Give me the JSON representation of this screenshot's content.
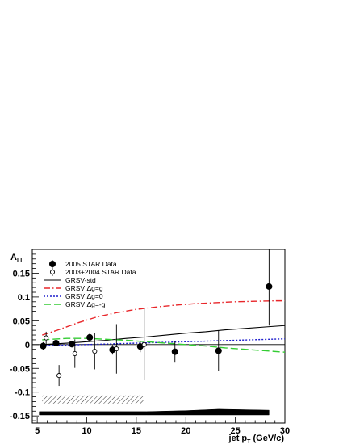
{
  "chart_data": {
    "type": "scatter",
    "title": "",
    "xlabel": "jet p",
    "xlabel_sub": "T",
    "xlabel_unit": "(GeV/c)",
    "ylabel": "A",
    "ylabel_sub": "LL",
    "xlim": [
      4.5,
      30
    ],
    "ylim": [
      -0.165,
      0.2
    ],
    "xticks": [
      5,
      10,
      15,
      20,
      25,
      30
    ],
    "xtick_labels": [
      "5",
      "10",
      "15",
      "20",
      "25",
      "30"
    ],
    "yticks": [
      -0.15,
      -0.1,
      -0.05,
      0,
      0.05,
      0.1,
      0.15
    ],
    "ytick_labels": [
      "-0.15",
      "-0.1",
      "-0.05",
      "0",
      "0.05",
      "0.1",
      "0.15"
    ],
    "grid": false,
    "legend_position": "top-left",
    "series": [
      {
        "name": "2005 STAR Data",
        "kind": "points",
        "marker": "filled-circle",
        "color": "#000000",
        "points": [
          {
            "x": 5.6,
            "y": -0.003,
            "err": 0.008
          },
          {
            "x": 6.9,
            "y": 0.003,
            "err": 0.006
          },
          {
            "x": 8.5,
            "y": 0.001,
            "err": 0.007
          },
          {
            "x": 10.3,
            "y": 0.015,
            "err": 0.01
          },
          {
            "x": 12.6,
            "y": -0.011,
            "err": 0.01
          },
          {
            "x": 15.4,
            "y": -0.004,
            "err": 0.012
          },
          {
            "x": 18.9,
            "y": -0.015,
            "err": 0.023
          },
          {
            "x": 23.3,
            "y": -0.013,
            "err": 0.042
          },
          {
            "x": 28.4,
            "y": 0.122,
            "err": 0.082
          }
        ]
      },
      {
        "name": "2003+2004 STAR Data",
        "kind": "points",
        "marker": "open-circle",
        "color": "#000000",
        "points": [
          {
            "x": 5.9,
            "y": 0.014,
            "err": 0.013
          },
          {
            "x": 7.2,
            "y": -0.065,
            "err": 0.022
          },
          {
            "x": 8.8,
            "y": -0.019,
            "err": 0.03
          },
          {
            "x": 10.8,
            "y": -0.014,
            "err": 0.038
          },
          {
            "x": 13.0,
            "y": -0.009,
            "err": 0.052
          },
          {
            "x": 15.8,
            "y": 0.0,
            "err": 0.075
          }
        ]
      },
      {
        "name": "GRSV-std",
        "kind": "curve",
        "color": "#000000",
        "dash": "solid",
        "x": [
          5.5,
          8,
          10,
          12,
          14,
          16,
          18,
          20,
          22,
          24,
          26,
          28,
          30
        ],
        "y": [
          0.0,
          0.003,
          0.006,
          0.009,
          0.013,
          0.016,
          0.02,
          0.024,
          0.027,
          0.031,
          0.034,
          0.037,
          0.04
        ]
      },
      {
        "name": "GRSV Δg=g",
        "kind": "curve",
        "color": "#e8262a",
        "dash": "dashdot",
        "x": [
          5.5,
          7,
          9,
          11,
          13,
          15,
          17,
          19,
          21,
          23,
          25,
          27,
          29,
          30
        ],
        "y": [
          0.02,
          0.03,
          0.045,
          0.058,
          0.067,
          0.074,
          0.079,
          0.083,
          0.086,
          0.088,
          0.09,
          0.091,
          0.092,
          0.092
        ]
      },
      {
        "name": "GRSV Δg=0",
        "kind": "curve",
        "color": "#1c1ccc",
        "dash": "dotted",
        "x": [
          5.5,
          10,
          15,
          20,
          25,
          30
        ],
        "y": [
          -0.002,
          0.0,
          0.003,
          0.006,
          0.009,
          0.012
        ]
      },
      {
        "name": "GRSV Δg=-g",
        "kind": "curve",
        "color": "#33cc33",
        "dash": "longdash",
        "x": [
          5.5,
          8,
          10,
          12,
          14,
          16,
          18,
          20,
          22,
          24,
          26,
          28,
          30
        ],
        "y": [
          0.01,
          0.013,
          0.013,
          0.011,
          0.009,
          0.006,
          0.003,
          0.0,
          -0.003,
          -0.007,
          -0.01,
          -0.013,
          -0.016
        ]
      }
    ],
    "reference_line_y": 0,
    "systematic_bands": [
      {
        "label": "2003+2004 systematic",
        "style": "hatched",
        "x_start": 5.5,
        "x_end": 15.7,
        "y_low": -0.124,
        "y_high": -0.107
      },
      {
        "label": "2005 systematic",
        "style": "solid",
        "x": [
          5.2,
          10,
          16,
          20,
          23.3,
          28.4
        ],
        "y_low": [
          -0.148,
          -0.148,
          -0.148,
          -0.148,
          -0.148,
          -0.148
        ],
        "y_high": [
          -0.141,
          -0.141,
          -0.141,
          -0.139,
          -0.136,
          -0.138
        ]
      }
    ]
  }
}
